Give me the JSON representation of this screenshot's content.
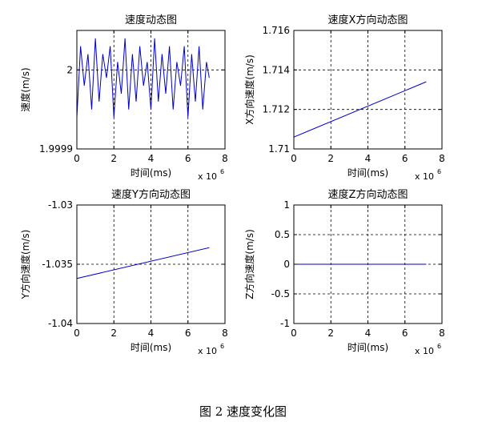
{
  "caption": "图 2 速度变化图",
  "colors": {
    "line": "#0000c8",
    "grid": "#000000",
    "axes": "#000000"
  },
  "chart_data": [
    {
      "type": "line",
      "title": "速度动态图",
      "xlabel": "时间(ms)",
      "ylabel": "速度(m/s)",
      "xlim": [
        0,
        8
      ],
      "ylim": [
        1.9999,
        2.00005
      ],
      "xticks": [
        0,
        2,
        4,
        6,
        8
      ],
      "xtick_labels": [
        "0",
        "2",
        "4",
        "6",
        "8"
      ],
      "yticks": [
        1.9999,
        2
      ],
      "ytick_labels": [
        "1.9999",
        "2"
      ],
      "x_multiplier": {
        "base": "x 10",
        "exp": "6"
      },
      "grid": true,
      "series": [
        {
          "x": [
            0,
            0.2,
            0.4,
            0.6,
            0.8,
            1.0,
            1.2,
            1.4,
            1.6,
            1.8,
            2.0,
            2.2,
            2.4,
            2.6,
            2.8,
            3.0,
            3.2,
            3.4,
            3.6,
            3.8,
            4.0,
            4.2,
            4.4,
            4.6,
            4.8,
            5.0,
            5.2,
            5.4,
            5.6,
            5.8,
            6.0,
            6.2,
            6.4,
            6.6,
            6.8,
            7.0,
            7.15
          ],
          "y": [
            1.99994,
            2.00003,
            1.99998,
            2.00002,
            1.99995,
            2.00004,
            1.99996,
            2.00002,
            1.99999,
            2.00003,
            1.99994,
            2.00001,
            1.99997,
            2.00004,
            1.99995,
            2.00002,
            1.99996,
            2.00003,
            1.99998,
            2.00001,
            1.99995,
            2.00004,
            1.99996,
            2.00002,
            1.99997,
            2.00003,
            1.99995,
            2.00001,
            1.99998,
            2.00003,
            1.99994,
            2.00002,
            1.99996,
            2.00003,
            1.99995,
            2.00001,
            1.99999
          ]
        }
      ]
    },
    {
      "type": "line",
      "title": "速度X方向动态图",
      "xlabel": "时间(ms)",
      "ylabel": "X方向速度(m/s)",
      "xlim": [
        0,
        8
      ],
      "ylim": [
        1.71,
        1.716
      ],
      "xticks": [
        0,
        2,
        4,
        6,
        8
      ],
      "xtick_labels": [
        "0",
        "2",
        "4",
        "6",
        "8"
      ],
      "yticks": [
        1.71,
        1.712,
        1.714,
        1.716
      ],
      "ytick_labels": [
        "1.71",
        "1.712",
        "1.714",
        "1.716"
      ],
      "x_multiplier": {
        "base": "x 10",
        "exp": "6"
      },
      "grid": true,
      "series": [
        {
          "x": [
            0,
            7.15
          ],
          "y": [
            1.7106,
            1.7134
          ]
        }
      ]
    },
    {
      "type": "line",
      "title": "速度Y方向动态图",
      "xlabel": "时间(ms)",
      "ylabel": "Y方向速度(m/s)",
      "xlim": [
        0,
        8
      ],
      "ylim": [
        -1.04,
        -1.03
      ],
      "xticks": [
        0,
        2,
        4,
        6,
        8
      ],
      "xtick_labels": [
        "0",
        "2",
        "4",
        "6",
        "8"
      ],
      "yticks": [
        -1.04,
        -1.035,
        -1.03
      ],
      "ytick_labels": [
        "-1.04",
        "-1.035",
        "-1.03"
      ],
      "x_multiplier": {
        "base": "x 10",
        "exp": "6"
      },
      "grid": true,
      "series": [
        {
          "x": [
            0,
            7.15
          ],
          "y": [
            -1.0362,
            -1.0336
          ]
        }
      ]
    },
    {
      "type": "line",
      "title": "速度Z方向动态图",
      "xlabel": "时间(ms)",
      "ylabel": "Z方向速度(m/s)",
      "xlim": [
        0,
        8
      ],
      "ylim": [
        -1,
        1
      ],
      "xticks": [
        0,
        2,
        4,
        6,
        8
      ],
      "xtick_labels": [
        "0",
        "2",
        "4",
        "6",
        "8"
      ],
      "yticks": [
        -1,
        -0.5,
        0,
        0.5,
        1
      ],
      "ytick_labels": [
        "-1",
        "-0.5",
        "0",
        "0.5",
        "1"
      ],
      "x_multiplier": {
        "base": "x 10",
        "exp": "6"
      },
      "grid": true,
      "series": [
        {
          "x": [
            0,
            7.15
          ],
          "y": [
            0,
            0
          ]
        }
      ]
    }
  ]
}
